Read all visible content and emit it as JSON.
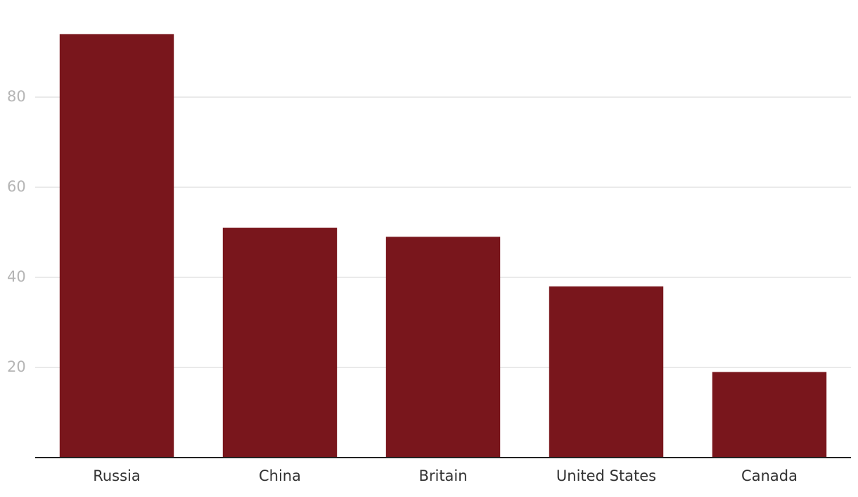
{
  "chart_data": {
    "type": "bar",
    "categories": [
      "Russia",
      "China",
      "Britain",
      "United States",
      "Canada"
    ],
    "values": [
      94,
      51,
      49,
      38,
      19
    ],
    "color": "#79161c",
    "ylim": [
      0,
      100
    ],
    "yticks": [
      20,
      40,
      60,
      80
    ],
    "grid": true
  }
}
